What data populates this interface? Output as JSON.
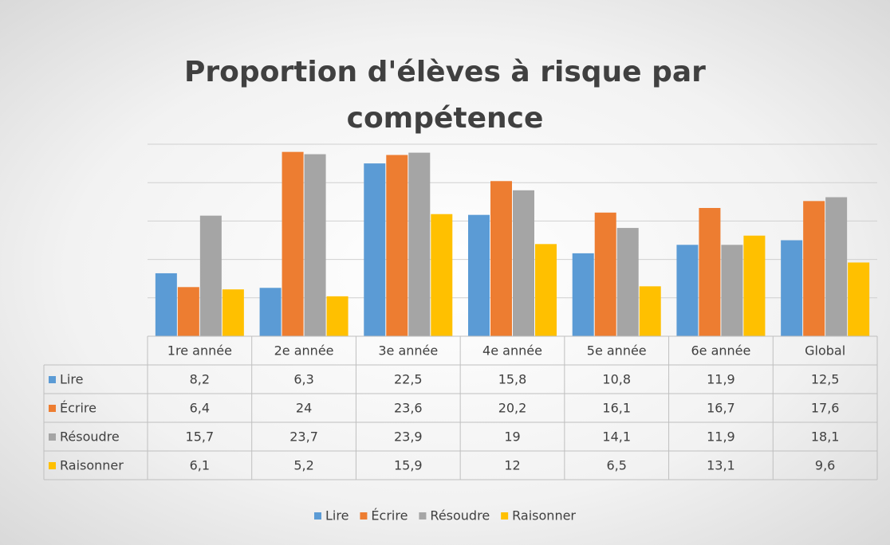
{
  "chart_data": {
    "type": "bar",
    "title": "Proportion d'élèves à risque par compétence",
    "categories": [
      "1re année",
      "2e année",
      "3e année",
      "4e année",
      "5e année",
      "6e année",
      "Global"
    ],
    "series": [
      {
        "name": "Lire",
        "color": "#5b9bd5",
        "values": [
          8.2,
          6.3,
          22.5,
          15.8,
          10.8,
          11.9,
          12.5
        ],
        "value_labels": [
          "8,2",
          "6,3",
          "22,5",
          "15,8",
          "10,8",
          "11,9",
          "12,5"
        ]
      },
      {
        "name": "Écrire",
        "color": "#ed7d31",
        "values": [
          6.4,
          24,
          23.6,
          20.2,
          16.1,
          16.7,
          17.6
        ],
        "value_labels": [
          "6,4",
          "24",
          "23,6",
          "20,2",
          "16,1",
          "16,7",
          "17,6"
        ]
      },
      {
        "name": "Résoudre",
        "color": "#a5a5a5",
        "values": [
          15.7,
          23.7,
          23.9,
          19,
          14.1,
          11.9,
          18.1
        ],
        "value_labels": [
          "15,7",
          "23,7",
          "23,9",
          "19",
          "14,1",
          "11,9",
          "18,1"
        ]
      },
      {
        "name": "Raisonner",
        "color": "#ffc000",
        "values": [
          6.1,
          5.2,
          15.9,
          12,
          6.5,
          13.1,
          9.6
        ],
        "value_labels": [
          "6,1",
          "5,2",
          "15,9",
          "12",
          "6,5",
          "13,1",
          "9,6"
        ]
      }
    ],
    "ylim": [
      0,
      25
    ],
    "yticks": [
      0,
      5,
      10,
      15,
      20,
      25
    ],
    "grid": true,
    "legend": "bottom"
  }
}
